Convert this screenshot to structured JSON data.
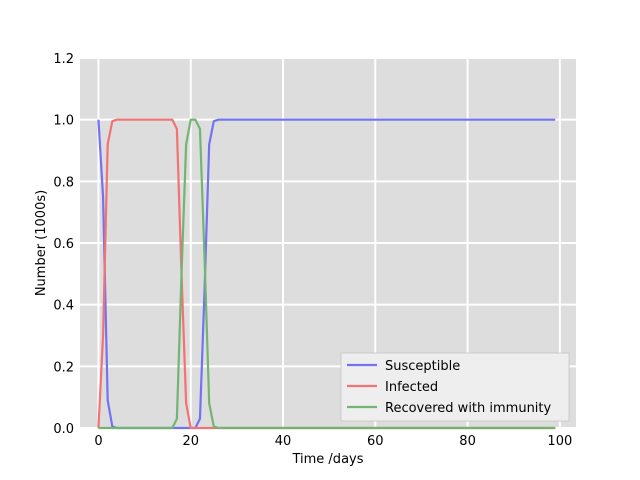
{
  "chart_data": {
    "type": "line",
    "xlabel": "Time /days",
    "ylabel": "Number (1000s)",
    "xlim": [
      -4,
      103.5
    ],
    "ylim": [
      0,
      1.2
    ],
    "xticks": [
      "0",
      "20",
      "40",
      "60",
      "80",
      "100"
    ],
    "yticks": [
      "0.0",
      "0.2",
      "0.4",
      "0.6",
      "0.8",
      "1.0",
      "1.2"
    ],
    "grid": true,
    "legend_position": "lower-right",
    "series": [
      {
        "name": "Susceptible",
        "color": "#7373f2",
        "points": [
          [
            0,
            1.0
          ],
          [
            1,
            0.75
          ],
          [
            2,
            0.09
          ],
          [
            3,
            0.005
          ],
          [
            4,
            0.0
          ],
          [
            21,
            0.0
          ],
          [
            22,
            0.03
          ],
          [
            23,
            0.45
          ],
          [
            24,
            0.92
          ],
          [
            25,
            0.995
          ],
          [
            26,
            1.0
          ],
          [
            99,
            1.0
          ]
        ]
      },
      {
        "name": "Infected",
        "color": "#f27373",
        "points": [
          [
            0,
            0.0
          ],
          [
            1,
            0.3
          ],
          [
            2,
            0.92
          ],
          [
            3,
            0.995
          ],
          [
            4,
            1.0
          ],
          [
            16,
            1.0
          ],
          [
            17,
            0.97
          ],
          [
            18,
            0.5
          ],
          [
            19,
            0.08
          ],
          [
            20,
            0.0
          ],
          [
            99,
            0.0
          ]
        ]
      },
      {
        "name": "Recovered with immunity",
        "color": "#73b473",
        "points": [
          [
            0,
            0.0
          ],
          [
            16,
            0.0
          ],
          [
            17,
            0.03
          ],
          [
            18,
            0.5
          ],
          [
            19,
            0.92
          ],
          [
            20,
            1.0
          ],
          [
            21,
            1.0
          ],
          [
            22,
            0.97
          ],
          [
            23,
            0.55
          ],
          [
            24,
            0.08
          ],
          [
            25,
            0.005
          ],
          [
            26,
            0.0
          ],
          [
            99,
            0.0
          ]
        ]
      }
    ]
  }
}
